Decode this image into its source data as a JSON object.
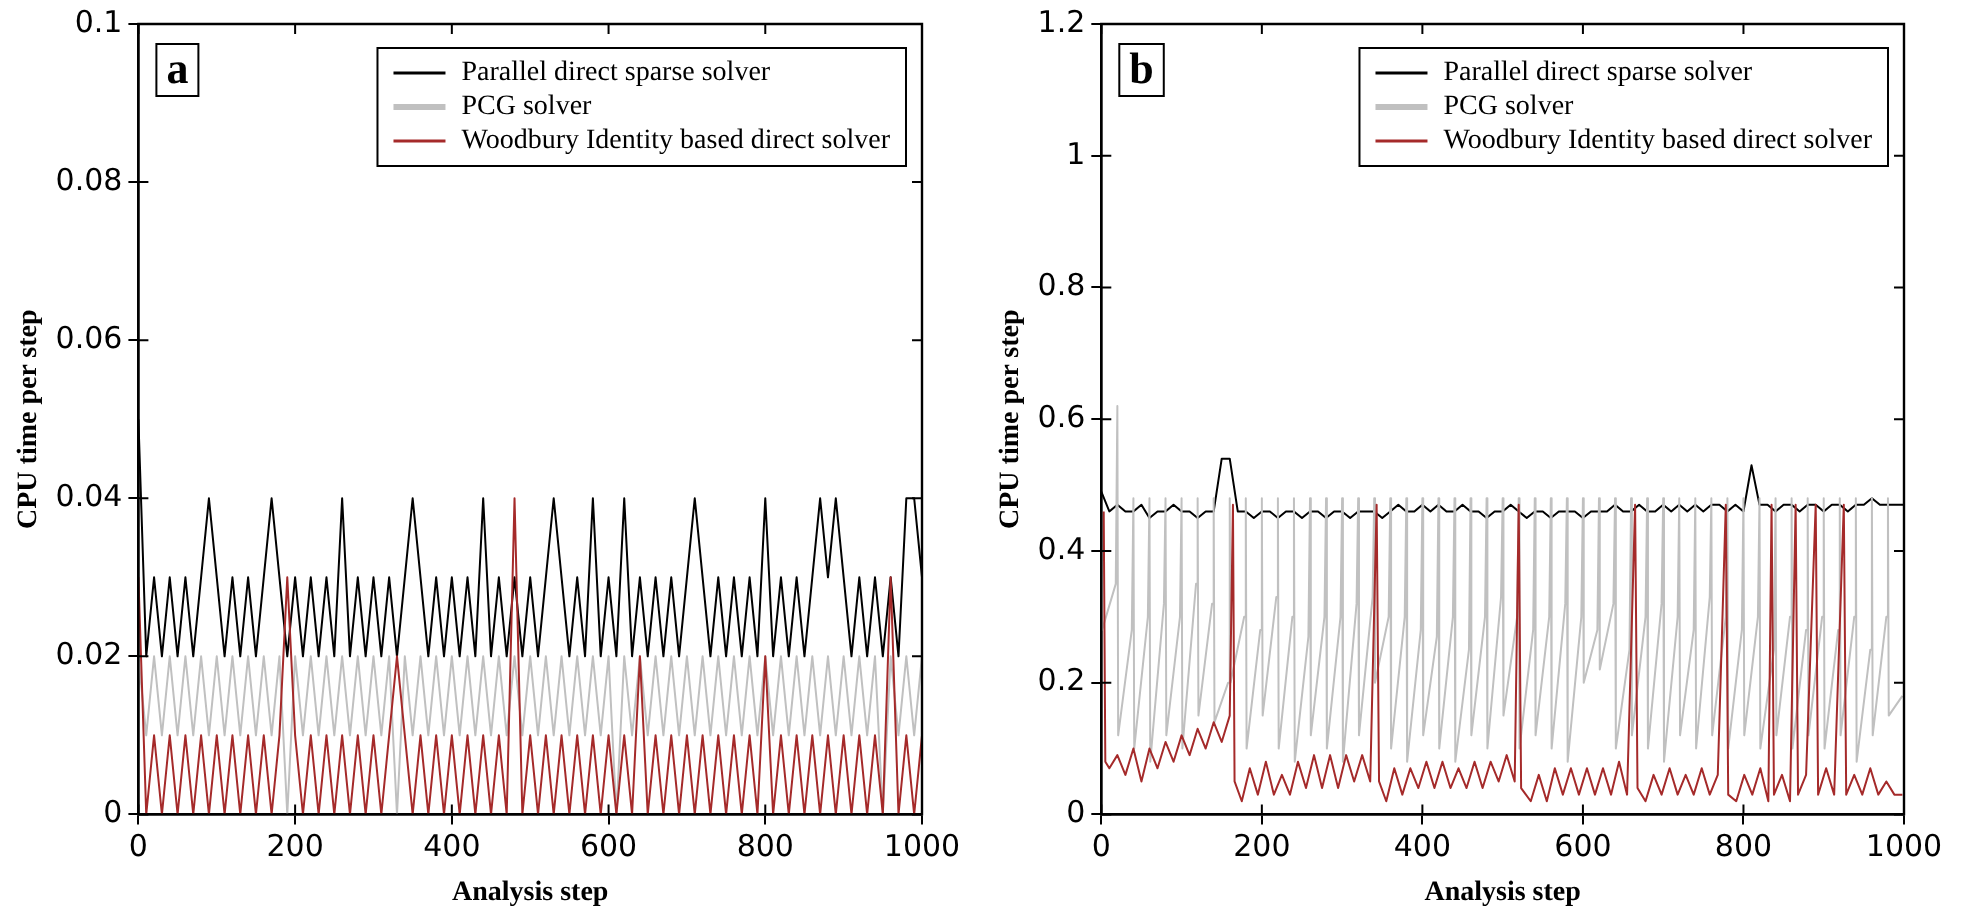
{
  "chart_data": [
    {
      "type": "line",
      "annotations": [
        "a"
      ],
      "xlabel": "Analysis step",
      "ylabel": "CPU time per step",
      "xlim": [
        0,
        1000
      ],
      "xticks": [
        0,
        200,
        400,
        600,
        800,
        1000
      ],
      "ylim": [
        0,
        0.1
      ],
      "yticks": [
        0,
        0.02,
        0.04,
        0.06,
        0.08,
        0.1
      ],
      "legend": "top right",
      "x": [
        0,
        10,
        20,
        30,
        40,
        50,
        60,
        70,
        80,
        90,
        100,
        110,
        120,
        130,
        140,
        150,
        160,
        170,
        180,
        190,
        200,
        210,
        220,
        230,
        240,
        250,
        260,
        270,
        280,
        290,
        300,
        310,
        320,
        330,
        340,
        350,
        360,
        370,
        380,
        390,
        400,
        410,
        420,
        430,
        440,
        450,
        460,
        470,
        480,
        490,
        500,
        510,
        520,
        530,
        540,
        550,
        560,
        570,
        580,
        590,
        600,
        610,
        620,
        630,
        640,
        650,
        660,
        670,
        680,
        690,
        700,
        710,
        720,
        730,
        740,
        750,
        760,
        770,
        780,
        790,
        800,
        810,
        820,
        830,
        840,
        850,
        860,
        870,
        880,
        890,
        900,
        910,
        920,
        930,
        940,
        950,
        960,
        970,
        980,
        990,
        1000
      ],
      "series": [
        {
          "name": "Parallel direct sparse solver",
          "color": "#000000",
          "values": [
            0.05,
            0.02,
            0.03,
            0.02,
            0.03,
            0.02,
            0.03,
            0.02,
            0.03,
            0.04,
            0.03,
            0.02,
            0.03,
            0.02,
            0.03,
            0.02,
            0.03,
            0.04,
            0.03,
            0.02,
            0.03,
            0.02,
            0.03,
            0.02,
            0.03,
            0.02,
            0.04,
            0.02,
            0.03,
            0.02,
            0.03,
            0.02,
            0.03,
            0.02,
            0.03,
            0.04,
            0.03,
            0.02,
            0.03,
            0.02,
            0.03,
            0.02,
            0.03,
            0.02,
            0.04,
            0.02,
            0.03,
            0.02,
            0.03,
            0.02,
            0.03,
            0.02,
            0.03,
            0.04,
            0.03,
            0.02,
            0.03,
            0.02,
            0.04,
            0.02,
            0.03,
            0.02,
            0.04,
            0.02,
            0.03,
            0.02,
            0.03,
            0.02,
            0.03,
            0.02,
            0.03,
            0.04,
            0.03,
            0.02,
            0.03,
            0.02,
            0.03,
            0.02,
            0.03,
            0.02,
            0.04,
            0.02,
            0.03,
            0.02,
            0.03,
            0.02,
            0.03,
            0.04,
            0.03,
            0.04,
            0.03,
            0.02,
            0.03,
            0.02,
            0.03,
            0.02,
            0.03,
            0.02,
            0.04,
            0.04,
            0.03
          ]
        },
        {
          "name": "PCG solver",
          "color": "#c0c0c0",
          "values": [
            0.02,
            0.01,
            0.02,
            0.01,
            0.02,
            0.01,
            0.02,
            0.01,
            0.02,
            0.01,
            0.02,
            0.01,
            0.02,
            0.01,
            0.02,
            0.01,
            0.02,
            0.01,
            0.02,
            0,
            0.02,
            0.01,
            0.02,
            0.01,
            0.02,
            0.01,
            0.02,
            0.01,
            0.02,
            0.01,
            0.02,
            0.01,
            0.02,
            0,
            0.02,
            0.01,
            0.02,
            0.01,
            0.02,
            0.01,
            0.02,
            0.01,
            0.02,
            0.01,
            0.02,
            0.01,
            0.02,
            0.01,
            0.02,
            0.01,
            0.02,
            0.01,
            0.02,
            0.01,
            0.02,
            0.01,
            0.02,
            0.01,
            0.02,
            0.01,
            0.02,
            0,
            0.02,
            0.01,
            0.02,
            0.01,
            0.02,
            0.01,
            0.02,
            0.01,
            0.02,
            0.01,
            0.02,
            0.01,
            0.02,
            0.01,
            0.02,
            0.01,
            0.02,
            0.01,
            0.02,
            0.01,
            0.02,
            0.01,
            0.02,
            0.01,
            0.02,
            0.01,
            0.02,
            0.01,
            0.02,
            0.01,
            0.02,
            0.01,
            0.02,
            0,
            0.02,
            0.01,
            0.02,
            0.01,
            0.02
          ]
        },
        {
          "name": "Woodbury Identity based direct solver",
          "color": "#a52a2a",
          "values": [
            0.03,
            0,
            0.01,
            0,
            0.01,
            0,
            0.01,
            0,
            0.01,
            0,
            0.01,
            0,
            0.01,
            0,
            0.01,
            0,
            0.01,
            0,
            0.01,
            0.03,
            0.01,
            0,
            0.01,
            0,
            0.01,
            0,
            0.01,
            0,
            0.01,
            0,
            0.01,
            0,
            0.01,
            0.02,
            0.01,
            0,
            0.01,
            0,
            0.01,
            0,
            0.01,
            0,
            0.01,
            0,
            0.01,
            0,
            0.01,
            0,
            0.04,
            0,
            0.01,
            0,
            0.01,
            0,
            0.01,
            0,
            0.01,
            0,
            0.01,
            0,
            0.01,
            0,
            0.01,
            0,
            0.02,
            0,
            0.01,
            0,
            0.01,
            0,
            0.01,
            0,
            0.01,
            0,
            0.01,
            0,
            0.01,
            0,
            0.01,
            0,
            0.02,
            0,
            0.01,
            0,
            0.01,
            0,
            0.01,
            0,
            0.01,
            0,
            0.01,
            0,
            0.01,
            0,
            0.01,
            0,
            0.03,
            0,
            0.01,
            0,
            0.01
          ]
        }
      ]
    },
    {
      "type": "line",
      "annotations": [
        "b"
      ],
      "xlabel": "Analysis step",
      "ylabel": "CPU time per step",
      "xlim": [
        0,
        1000
      ],
      "xticks": [
        0,
        200,
        400,
        600,
        800,
        1000
      ],
      "ylim": [
        0,
        1.2
      ],
      "yticks": [
        0,
        0.2,
        0.4,
        0.6,
        0.8,
        1,
        1.2
      ],
      "legend": "top right",
      "series": [
        {
          "name": "Parallel direct sparse solver",
          "color": "#000000",
          "x": [
            0,
            10,
            20,
            30,
            40,
            50,
            60,
            70,
            80,
            90,
            100,
            110,
            120,
            130,
            140,
            150,
            160,
            170,
            180,
            190,
            200,
            210,
            220,
            230,
            240,
            250,
            260,
            270,
            280,
            290,
            300,
            310,
            320,
            330,
            340,
            350,
            360,
            370,
            380,
            390,
            400,
            410,
            420,
            430,
            440,
            450,
            460,
            470,
            480,
            490,
            500,
            510,
            520,
            530,
            540,
            550,
            560,
            570,
            580,
            590,
            600,
            610,
            620,
            630,
            640,
            650,
            660,
            670,
            680,
            690,
            700,
            710,
            720,
            730,
            740,
            750,
            760,
            770,
            780,
            790,
            800,
            810,
            820,
            830,
            840,
            850,
            860,
            870,
            880,
            890,
            900,
            910,
            920,
            930,
            940,
            950,
            960,
            970,
            980,
            990,
            1000
          ],
          "values": [
            0.49,
            0.46,
            0.47,
            0.46,
            0.46,
            0.47,
            0.45,
            0.46,
            0.46,
            0.47,
            0.46,
            0.46,
            0.45,
            0.46,
            0.46,
            0.54,
            0.54,
            0.46,
            0.46,
            0.45,
            0.46,
            0.46,
            0.45,
            0.46,
            0.46,
            0.45,
            0.46,
            0.46,
            0.45,
            0.46,
            0.46,
            0.45,
            0.46,
            0.46,
            0.46,
            0.45,
            0.46,
            0.47,
            0.46,
            0.46,
            0.47,
            0.46,
            0.47,
            0.46,
            0.46,
            0.47,
            0.46,
            0.46,
            0.45,
            0.46,
            0.46,
            0.47,
            0.46,
            0.45,
            0.46,
            0.46,
            0.45,
            0.46,
            0.46,
            0.46,
            0.45,
            0.46,
            0.46,
            0.46,
            0.47,
            0.46,
            0.46,
            0.47,
            0.46,
            0.46,
            0.47,
            0.46,
            0.47,
            0.46,
            0.47,
            0.46,
            0.47,
            0.47,
            0.46,
            0.47,
            0.46,
            0.53,
            0.47,
            0.47,
            0.46,
            0.47,
            0.47,
            0.46,
            0.47,
            0.47,
            0.46,
            0.47,
            0.47,
            0.46,
            0.47,
            0.47,
            0.48,
            0.47,
            0.47,
            0.47,
            0.47
          ]
        },
        {
          "name": "PCG solver",
          "color": "#c0c0c0",
          "x": [
            0,
            1,
            18,
            20,
            21,
            38,
            40,
            41,
            58,
            60,
            61,
            78,
            80,
            81,
            98,
            100,
            101,
            118,
            120,
            121,
            138,
            140,
            141,
            158,
            160,
            161,
            178,
            180,
            181,
            198,
            200,
            201,
            218,
            220,
            221,
            238,
            240,
            241,
            258,
            260,
            261,
            278,
            280,
            281,
            298,
            300,
            301,
            318,
            320,
            321,
            338,
            340,
            341,
            358,
            360,
            361,
            378,
            380,
            381,
            398,
            400,
            401,
            418,
            420,
            421,
            438,
            440,
            441,
            458,
            460,
            461,
            478,
            480,
            481,
            498,
            500,
            501,
            518,
            520,
            521,
            538,
            540,
            541,
            558,
            560,
            561,
            578,
            580,
            581,
            598,
            600,
            601,
            618,
            620,
            621,
            638,
            640,
            641,
            658,
            660,
            661,
            678,
            680,
            681,
            698,
            700,
            701,
            718,
            720,
            721,
            738,
            740,
            741,
            758,
            760,
            761,
            778,
            780,
            781,
            798,
            800,
            801,
            818,
            820,
            821,
            838,
            840,
            841,
            858,
            860,
            861,
            878,
            880,
            881,
            898,
            900,
            901,
            918,
            920,
            921,
            938,
            940,
            941,
            958,
            960,
            961,
            978,
            980,
            981,
            998
          ],
          "values": [
            0.48,
            0.28,
            0.35,
            0.62,
            0.12,
            0.28,
            0.48,
            0.1,
            0.3,
            0.48,
            0.08,
            0.32,
            0.48,
            0.12,
            0.3,
            0.48,
            0.1,
            0.35,
            0.48,
            0.15,
            0.32,
            0.48,
            0.14,
            0.2,
            0.48,
            0.2,
            0.3,
            0.48,
            0.1,
            0.28,
            0.48,
            0.15,
            0.33,
            0.48,
            0.1,
            0.3,
            0.48,
            0.08,
            0.27,
            0.48,
            0.12,
            0.3,
            0.48,
            0.1,
            0.3,
            0.48,
            0.08,
            0.32,
            0.48,
            0.12,
            0.33,
            0.48,
            0.2,
            0.3,
            0.48,
            0.1,
            0.3,
            0.48,
            0.08,
            0.28,
            0.48,
            0.12,
            0.27,
            0.48,
            0.1,
            0.3,
            0.48,
            0.08,
            0.25,
            0.48,
            0.12,
            0.3,
            0.48,
            0.1,
            0.33,
            0.48,
            0.15,
            0.3,
            0.48,
            0.1,
            0.28,
            0.48,
            0.12,
            0.3,
            0.48,
            0.1,
            0.32,
            0.48,
            0.08,
            0.3,
            0.48,
            0.2,
            0.28,
            0.48,
            0.22,
            0.32,
            0.48,
            0.1,
            0.25,
            0.48,
            0.12,
            0.3,
            0.48,
            0.1,
            0.32,
            0.48,
            0.08,
            0.3,
            0.48,
            0.12,
            0.28,
            0.48,
            0.1,
            0.33,
            0.48,
            0.12,
            0.3,
            0.48,
            0.1,
            0.28,
            0.48,
            0.12,
            0.3,
            0.48,
            0.1,
            0.25,
            0.48,
            0.12,
            0.3,
            0.48,
            0.1,
            0.28,
            0.48,
            0.12,
            0.3,
            0.48,
            0.1,
            0.28,
            0.48,
            0.12,
            0.3,
            0.48,
            0.08,
            0.25,
            0.48,
            0.12,
            0.3,
            0.48,
            0.15,
            0.18
          ]
        },
        {
          "name": "Woodbury Identity based direct solver",
          "color": "#a52a2a",
          "x": [
            3,
            5,
            10,
            20,
            30,
            40,
            50,
            60,
            70,
            80,
            90,
            100,
            110,
            120,
            130,
            140,
            150,
            160,
            164,
            166,
            175,
            185,
            195,
            205,
            215,
            225,
            235,
            245,
            255,
            265,
            275,
            285,
            295,
            305,
            315,
            325,
            335,
            343,
            346,
            355,
            365,
            375,
            385,
            395,
            405,
            415,
            425,
            435,
            445,
            455,
            465,
            475,
            485,
            495,
            505,
            515,
            520,
            523,
            535,
            545,
            555,
            565,
            575,
            585,
            595,
            605,
            615,
            625,
            635,
            645,
            655,
            665,
            668,
            678,
            688,
            698,
            708,
            718,
            728,
            738,
            748,
            758,
            768,
            778,
            781,
            791,
            801,
            811,
            821,
            831,
            835,
            838,
            848,
            858,
            865,
            868,
            878,
            890,
            893,
            903,
            913,
            925,
            928,
            938,
            948,
            958,
            968,
            978,
            988,
            998
          ],
          "values": [
            0.46,
            0.08,
            0.07,
            0.09,
            0.06,
            0.1,
            0.05,
            0.1,
            0.07,
            0.11,
            0.08,
            0.12,
            0.09,
            0.13,
            0.1,
            0.14,
            0.11,
            0.15,
            0.47,
            0.05,
            0.02,
            0.07,
            0.03,
            0.08,
            0.03,
            0.06,
            0.03,
            0.08,
            0.04,
            0.09,
            0.04,
            0.09,
            0.04,
            0.09,
            0.05,
            0.09,
            0.05,
            0.47,
            0.05,
            0.02,
            0.07,
            0.03,
            0.07,
            0.04,
            0.08,
            0.04,
            0.08,
            0.04,
            0.07,
            0.04,
            0.08,
            0.04,
            0.08,
            0.05,
            0.09,
            0.05,
            0.47,
            0.04,
            0.02,
            0.06,
            0.02,
            0.07,
            0.03,
            0.07,
            0.03,
            0.07,
            0.03,
            0.07,
            0.03,
            0.08,
            0.03,
            0.47,
            0.04,
            0.02,
            0.06,
            0.03,
            0.07,
            0.03,
            0.06,
            0.03,
            0.07,
            0.03,
            0.06,
            0.47,
            0.03,
            0.02,
            0.06,
            0.03,
            0.07,
            0.02,
            0.47,
            0.03,
            0.06,
            0.02,
            0.47,
            0.03,
            0.06,
            0.47,
            0.03,
            0.07,
            0.03,
            0.47,
            0.03,
            0.06,
            0.03,
            0.07,
            0.03,
            0.05,
            0.03,
            0.03
          ]
        }
      ]
    }
  ]
}
